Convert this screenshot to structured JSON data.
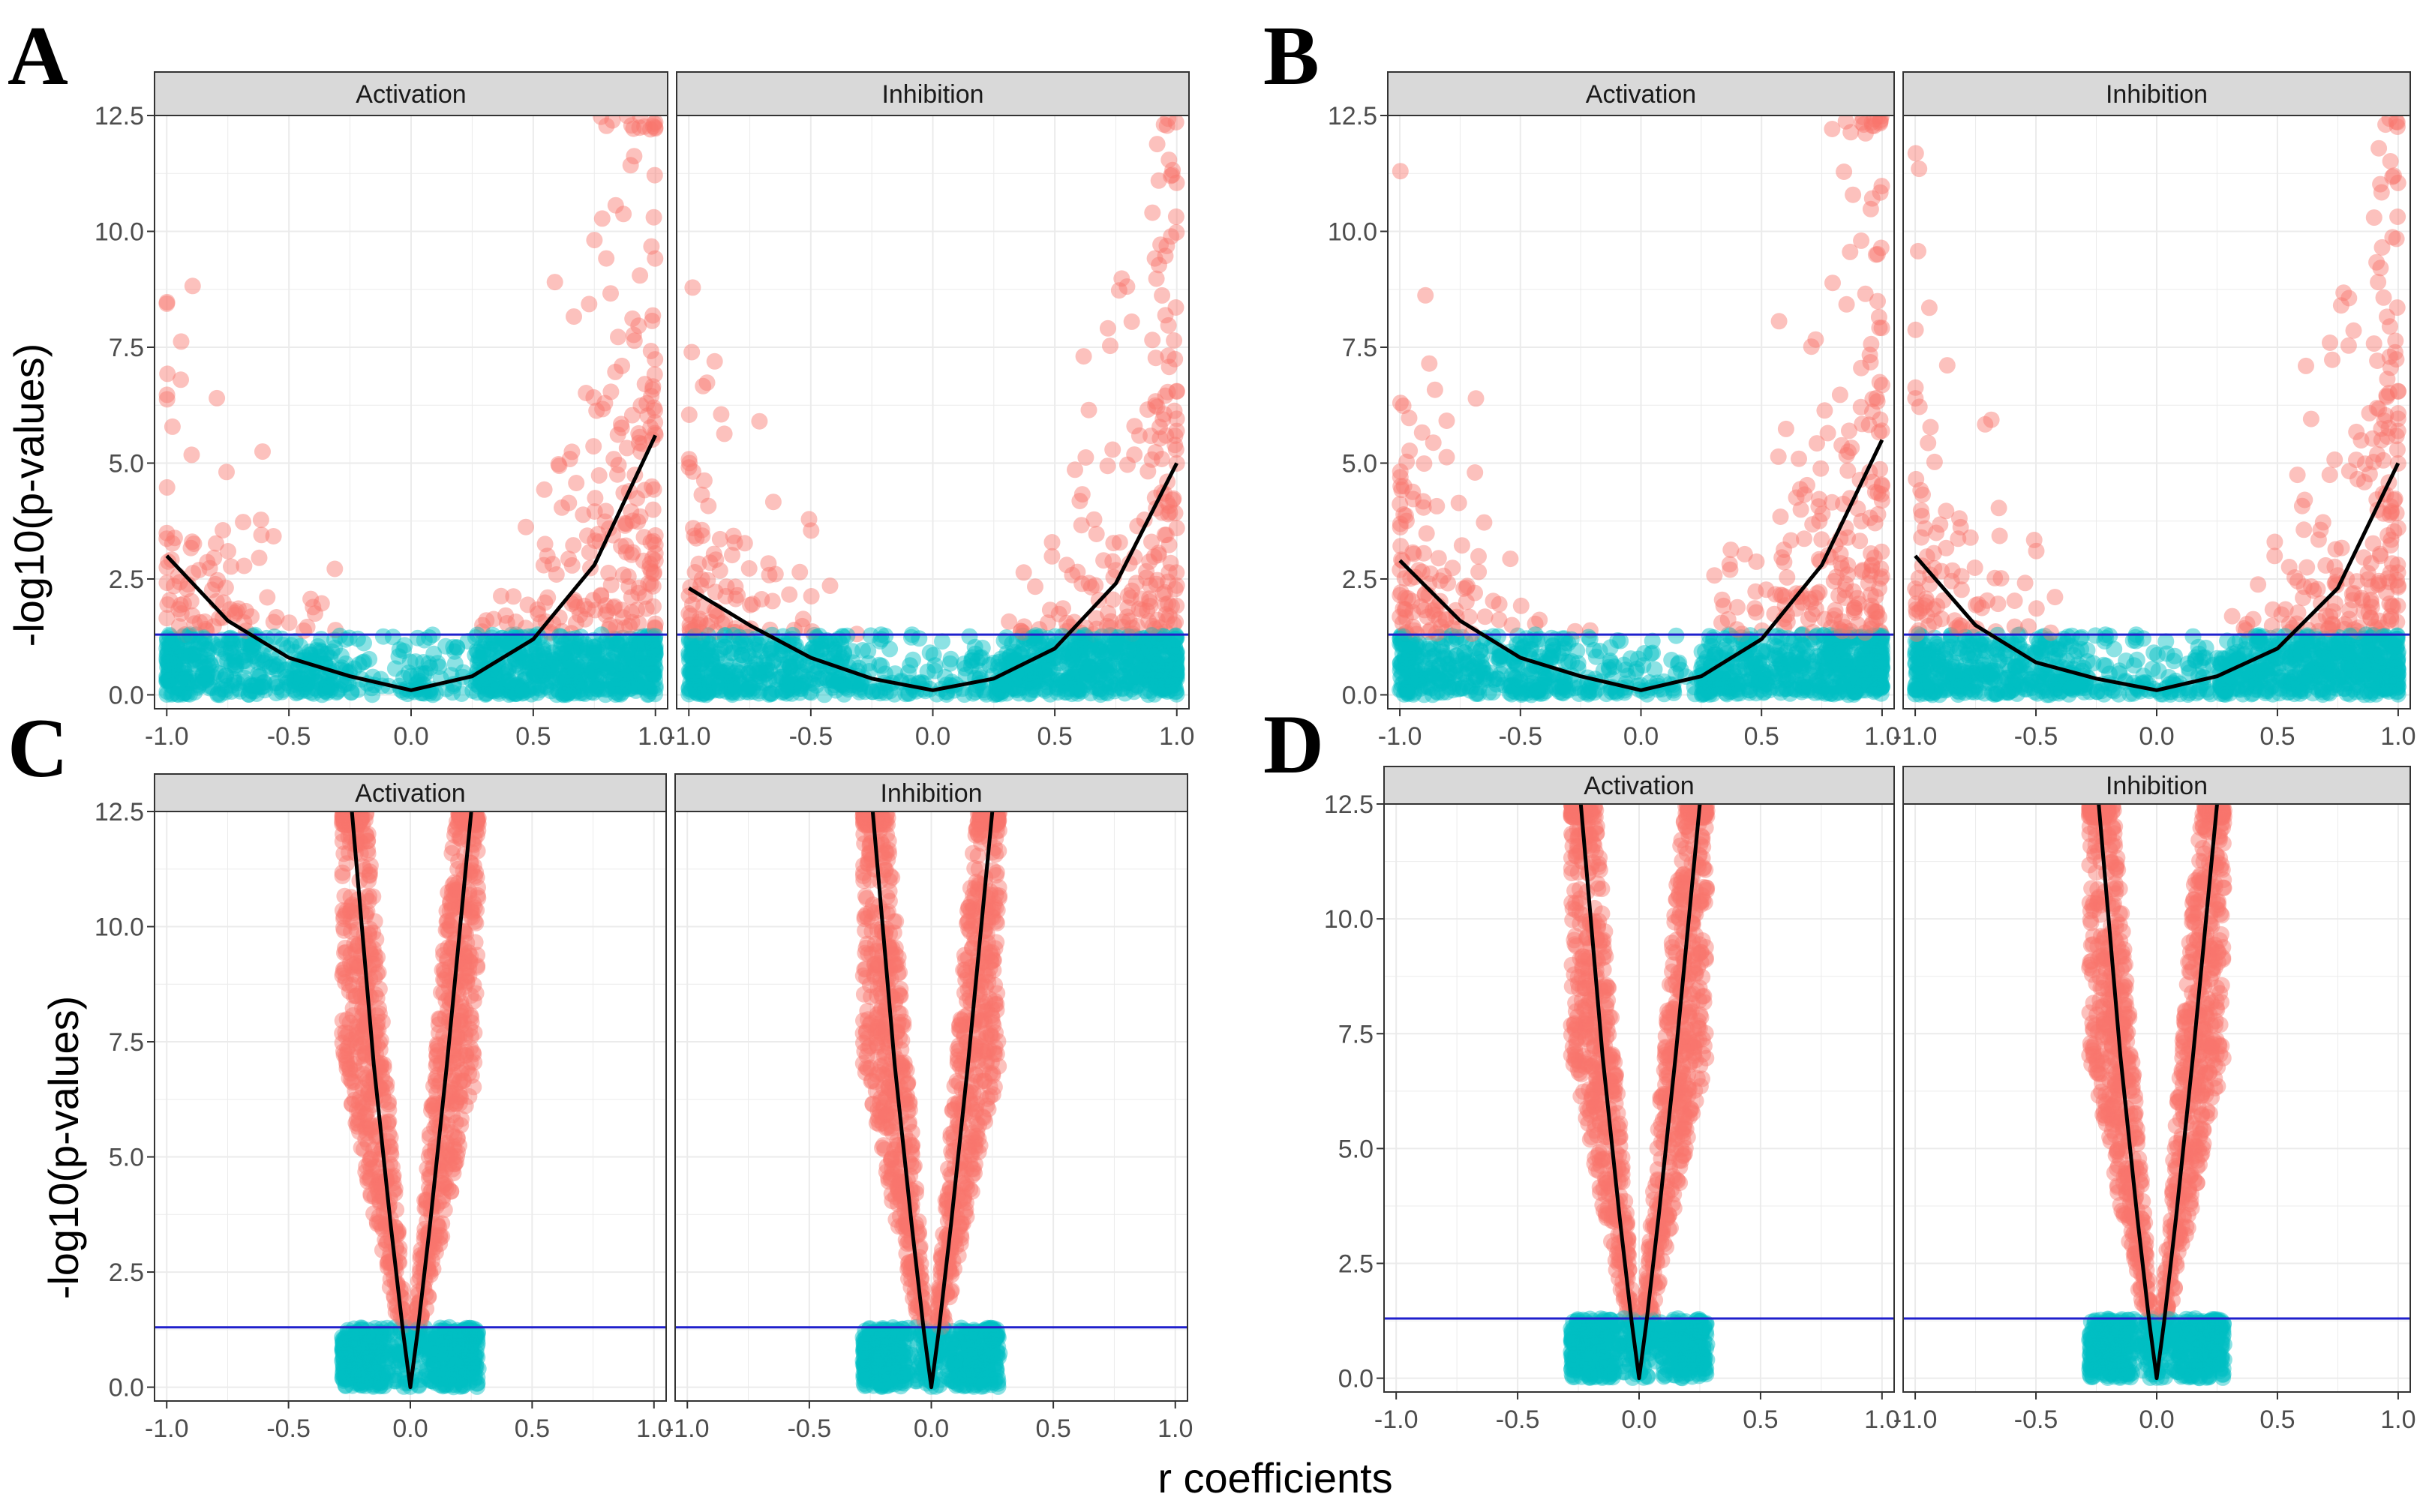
{
  "figure": {
    "ylabel": "-log10(p-values)",
    "xlabel": "r coefficients",
    "threshold": 1.3,
    "colors": {
      "significant": "#F8766D",
      "nonsignificant": "#00BFC4",
      "threshold_line": "#1F1FCC",
      "fit_line": "#000000",
      "strip": "#D9D9D9",
      "grid": "#EBEBEB"
    }
  },
  "chart_data": [
    {
      "type": "scatter",
      "panel": "A",
      "facets": [
        "Activation",
        "Inhibition"
      ],
      "xlim": [
        -1.05,
        1.05
      ],
      "ylim": [
        -0.3,
        12.5
      ],
      "xticks": [
        "-1.0",
        "-0.5",
        "0.0",
        "0.5",
        "1.0"
      ],
      "yticks": [
        "0.0",
        "2.5",
        "5.0",
        "7.5",
        "10.0",
        "12.5"
      ],
      "hline": 1.3,
      "spread": "wide",
      "fit": [
        {
          "facet": "Activation",
          "x": [
            -1.0,
            -0.75,
            -0.5,
            -0.25,
            0.0,
            0.25,
            0.5,
            0.75,
            1.0
          ],
          "y": [
            3.0,
            1.6,
            0.8,
            0.4,
            0.1,
            0.4,
            1.2,
            2.8,
            5.6
          ]
        },
        {
          "facet": "Inhibition",
          "x": [
            -1.0,
            -0.75,
            -0.5,
            -0.25,
            0.0,
            0.25,
            0.5,
            0.75,
            1.0
          ],
          "y": [
            2.3,
            1.5,
            0.8,
            0.35,
            0.1,
            0.35,
            1.0,
            2.4,
            5.0
          ]
        }
      ]
    },
    {
      "type": "scatter",
      "panel": "B",
      "facets": [
        "Activation",
        "Inhibition"
      ],
      "xlim": [
        -1.05,
        1.05
      ],
      "ylim": [
        -0.3,
        12.5
      ],
      "xticks": [
        "-1.0",
        "-0.5",
        "0.0",
        "0.5",
        "1.0"
      ],
      "yticks": [
        "0.0",
        "2.5",
        "5.0",
        "7.5",
        "10.0",
        "12.5"
      ],
      "hline": 1.3,
      "spread": "wide",
      "fit": [
        {
          "facet": "Activation",
          "x": [
            -1.0,
            -0.75,
            -0.5,
            -0.25,
            0.0,
            0.25,
            0.5,
            0.75,
            1.0
          ],
          "y": [
            2.9,
            1.6,
            0.8,
            0.4,
            0.1,
            0.4,
            1.2,
            2.8,
            5.5
          ]
        },
        {
          "facet": "Inhibition",
          "x": [
            -1.0,
            -0.75,
            -0.5,
            -0.25,
            0.0,
            0.25,
            0.5,
            0.75,
            1.0
          ],
          "y": [
            3.0,
            1.5,
            0.7,
            0.35,
            0.1,
            0.4,
            1.0,
            2.3,
            5.0
          ]
        }
      ]
    },
    {
      "type": "scatter",
      "panel": "C",
      "facets": [
        "Activation",
        "Inhibition"
      ],
      "xlim": [
        -1.05,
        1.05
      ],
      "ylim": [
        -0.3,
        12.5
      ],
      "xticks": [
        "-1.0",
        "-0.5",
        "0.0",
        "0.5",
        "1.0"
      ],
      "yticks": [
        "0.0",
        "2.5",
        "5.0",
        "7.5",
        "10.0",
        "12.5"
      ],
      "hline": 1.3,
      "spread": "narrow",
      "fit": [
        {
          "facet": "Activation",
          "x": [
            -0.24,
            -0.15,
            -0.08,
            -0.03,
            0.0,
            0.03,
            0.08,
            0.15,
            0.25
          ],
          "y": [
            12.5,
            7.0,
            3.5,
            1.2,
            0.0,
            1.2,
            3.5,
            7.0,
            12.5
          ]
        },
        {
          "facet": "Inhibition",
          "x": [
            -0.24,
            -0.15,
            -0.08,
            -0.03,
            0.0,
            0.03,
            0.08,
            0.15,
            0.25
          ],
          "y": [
            12.5,
            7.0,
            3.5,
            1.2,
            0.0,
            1.2,
            3.5,
            7.0,
            12.5
          ]
        }
      ]
    },
    {
      "type": "scatter",
      "panel": "D",
      "facets": [
        "Activation",
        "Inhibition"
      ],
      "xlim": [
        -1.05,
        1.05
      ],
      "ylim": [
        -0.3,
        12.5
      ],
      "xticks": [
        "-1.0",
        "-0.5",
        "0.0",
        "0.5",
        "1.0"
      ],
      "yticks": [
        "0.0",
        "2.5",
        "5.0",
        "7.5",
        "10.0",
        "12.5"
      ],
      "hline": 1.3,
      "spread": "narrow",
      "fit": [
        {
          "facet": "Activation",
          "x": [
            -0.24,
            -0.15,
            -0.08,
            -0.03,
            0.0,
            0.03,
            0.08,
            0.15,
            0.25
          ],
          "y": [
            12.5,
            7.0,
            3.5,
            1.2,
            0.0,
            1.2,
            3.5,
            7.0,
            12.5
          ]
        },
        {
          "facet": "Inhibition",
          "x": [
            -0.24,
            -0.15,
            -0.08,
            -0.03,
            0.0,
            0.03,
            0.08,
            0.15,
            0.25
          ],
          "y": [
            12.5,
            7.0,
            3.5,
            1.2,
            0.0,
            1.2,
            3.5,
            7.0,
            12.5
          ]
        }
      ]
    }
  ]
}
